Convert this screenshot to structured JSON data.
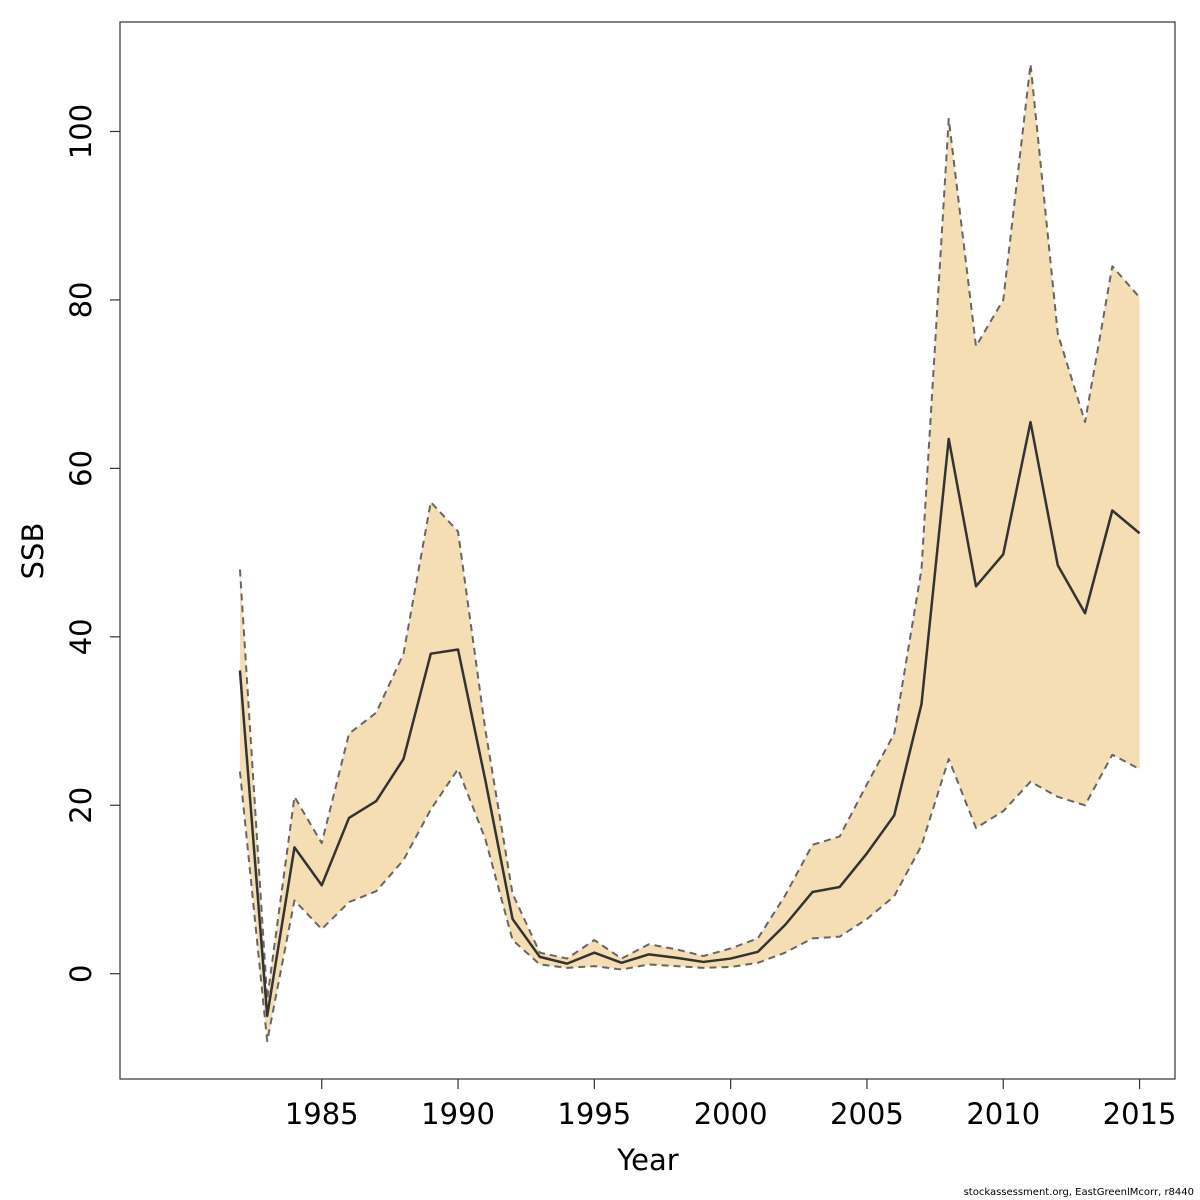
{
  "chart_data": {
    "type": "line",
    "title": "",
    "xlabel": "Year",
    "ylabel": "SSB",
    "x_ticks": [
      1985,
      1990,
      1995,
      2000,
      2005,
      2010,
      2015
    ],
    "y_ticks": [
      0,
      20,
      40,
      60,
      80,
      100
    ],
    "xlim": [
      1977.6,
      2016.3
    ],
    "ylim": [
      -12.5,
      113
    ],
    "grid": false,
    "legend": "none",
    "x": [
      1982,
      1983,
      1984,
      1985,
      1986,
      1987,
      1988,
      1989,
      1990,
      1991,
      1992,
      1993,
      1994,
      1995,
      1996,
      1997,
      1998,
      1999,
      2000,
      2001,
      2002,
      2003,
      2004,
      2005,
      2006,
      2007,
      2008,
      2009,
      2010,
      2011,
      2012,
      2013,
      2014,
      2015
    ],
    "series": [
      {
        "role": "estimate",
        "values": [
          36,
          -5,
          15,
          10.5,
          18.5,
          20.5,
          25.5,
          38,
          38.5,
          23,
          6.5,
          2,
          1.2,
          2.5,
          1.3,
          2.3,
          1.9,
          1.4,
          1.8,
          2.6,
          5.8,
          9.7,
          10.3,
          14.3,
          18.8,
          32,
          63.5,
          46,
          49.8,
          65.5,
          48.5,
          42.8,
          55,
          52.3
        ]
      },
      {
        "role": "upper",
        "values": [
          48,
          -3,
          21,
          15.5,
          28.5,
          31,
          38,
          56,
          52.5,
          29,
          9.5,
          2.5,
          1.8,
          4,
          1.8,
          3.5,
          2.9,
          2.1,
          3,
          4.2,
          9.3,
          15.3,
          16.3,
          22.5,
          28.5,
          48,
          101.5,
          74.5,
          80,
          108,
          76,
          65.5,
          84,
          80.3
        ]
      },
      {
        "role": "lower",
        "values": [
          24,
          -8,
          8.7,
          5.3,
          8.5,
          9.8,
          13.5,
          19.5,
          24.3,
          16,
          4,
          1.1,
          0.7,
          0.9,
          0.5,
          1.1,
          0.9,
          0.7,
          0.8,
          1.3,
          2.5,
          4.2,
          4.4,
          6.5,
          9.2,
          15.2,
          25.5,
          17.3,
          19.3,
          22.8,
          21,
          20,
          26,
          24.3
        ]
      }
    ],
    "colors": {
      "band_fill": "#f5deb3",
      "band_edge": "#666666",
      "line": "#333333",
      "axis": "#333333"
    }
  },
  "credit": "stockassessment.org, EastGreenlMcorr, r8440"
}
